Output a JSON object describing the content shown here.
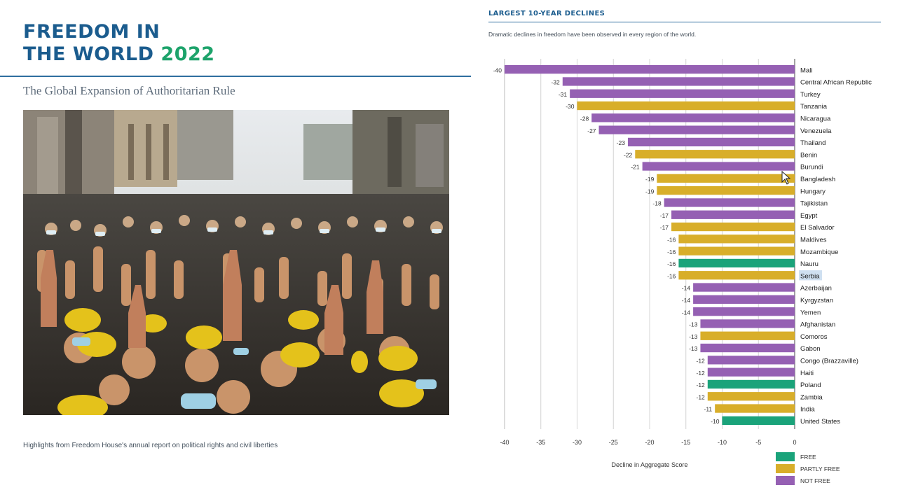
{
  "report": {
    "title_line1": "FREEDOM IN",
    "title_line2": "THE WORLD",
    "year": "2022",
    "subtitle": "The Global Expansion of Authoritarian Rule",
    "footer": "Highlights from Freedom House's annual report on political rights and civil liberties"
  },
  "chart_data": {
    "type": "bar",
    "orientation": "horizontal",
    "title": "LARGEST 10-YEAR DECLINES",
    "subtitle": "Dramatic declines in freedom have been observed in every region of the world.",
    "xlabel": "Decline in Aggregate Score",
    "xlim": [
      -40,
      0
    ],
    "xticks": [
      -40,
      -35,
      -30,
      -25,
      -20,
      -15,
      -10,
      -5,
      0
    ],
    "grid": true,
    "legend_position": "bottom-right",
    "legend": [
      {
        "key": "free",
        "label": "FREE",
        "color": "#1aa37a"
      },
      {
        "key": "partly",
        "label": "PARTLY FREE",
        "color": "#d8ae2a"
      },
      {
        "key": "not",
        "label": "NOT FREE",
        "color": "#9560b3"
      }
    ],
    "categories": [
      "Mali",
      "Central African Republic",
      "Turkey",
      "Tanzania",
      "Nicaragua",
      "Venezuela",
      "Thailand",
      "Benin",
      "Burundi",
      "Bangladesh",
      "Hungary",
      "Tajikistan",
      "Egypt",
      "El Salvador",
      "Maldives",
      "Mozambique",
      "Nauru",
      "Serbia",
      "Azerbaijan",
      "Kyrgyzstan",
      "Yemen",
      "Afghanistan",
      "Comoros",
      "Gabon",
      "Congo (Brazzaville)",
      "Haiti",
      "Poland",
      "Zambia",
      "India",
      "United States"
    ],
    "values": [
      -40,
      -32,
      -31,
      -30,
      -28,
      -27,
      -23,
      -22,
      -21,
      -19,
      -19,
      -18,
      -17,
      -17,
      -16,
      -16,
      -16,
      -16,
      -14,
      -14,
      -14,
      -13,
      -13,
      -13,
      -12,
      -12,
      -12,
      -12,
      -11,
      -10
    ],
    "status": [
      "not",
      "not",
      "not",
      "partly",
      "not",
      "not",
      "not",
      "partly",
      "not",
      "partly",
      "partly",
      "not",
      "not",
      "partly",
      "partly",
      "partly",
      "free",
      "partly",
      "not",
      "not",
      "not",
      "not",
      "partly",
      "not",
      "not",
      "not",
      "free",
      "partly",
      "partly",
      "free"
    ],
    "highlighted_category": "Serbia"
  }
}
